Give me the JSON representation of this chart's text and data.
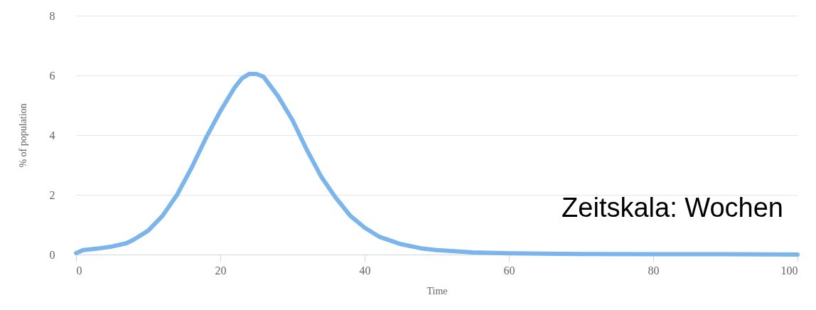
{
  "chart_data": {
    "type": "line",
    "xlabel": "Time",
    "ylabel": "% of population",
    "annotations": [
      "Zeitskala: Wochen"
    ],
    "series": [
      {
        "color": "#7cb5ec",
        "x": [
          0,
          1,
          3,
          5,
          7,
          8,
          10,
          12,
          14,
          16,
          18,
          20,
          22,
          23,
          24,
          25,
          26,
          28,
          30,
          32,
          34,
          36,
          38,
          40,
          42,
          45,
          48,
          50,
          55,
          60,
          70,
          80,
          90,
          100
        ],
        "values": [
          0.05,
          0.15,
          0.2,
          0.27,
          0.38,
          0.5,
          0.8,
          1.3,
          2.0,
          2.9,
          3.9,
          4.8,
          5.6,
          5.9,
          6.05,
          6.05,
          5.95,
          5.3,
          4.5,
          3.5,
          2.6,
          1.9,
          1.3,
          0.9,
          0.6,
          0.35,
          0.2,
          0.15,
          0.07,
          0.04,
          0.02,
          0.01,
          0.01,
          0.0
        ]
      }
    ],
    "xlim": [
      0,
      100
    ],
    "xticks": [
      0,
      20,
      40,
      60,
      80,
      100
    ],
    "ylim": [
      0,
      8
    ],
    "yticks": [
      0,
      2,
      4,
      6,
      8
    ],
    "grid": "y",
    "marker": "none",
    "line_style": "solid"
  }
}
